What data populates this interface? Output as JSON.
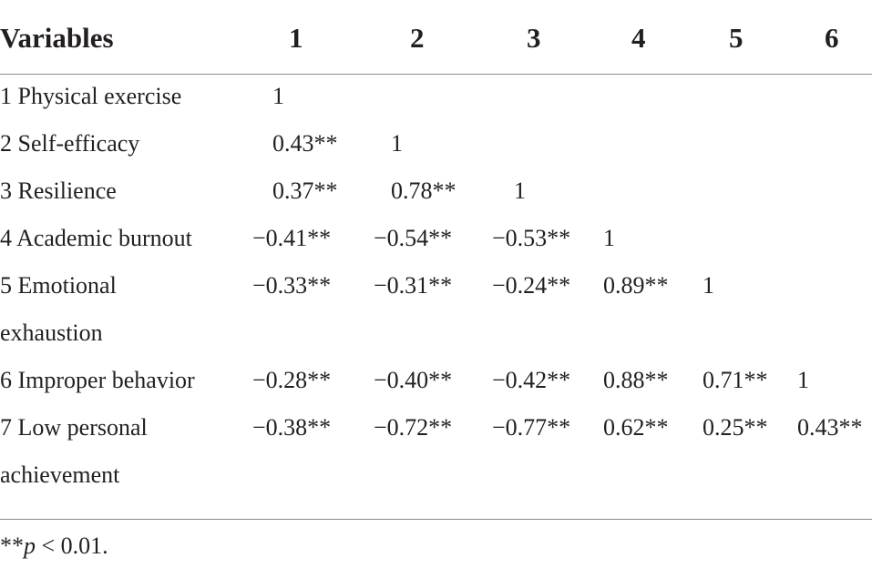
{
  "table": {
    "headers": [
      "Variables",
      "1",
      "2",
      "3",
      "4",
      "5",
      "6"
    ],
    "rows": [
      {
        "variable": "1 Physical exercise",
        "values": [
          "1",
          "",
          "",
          "",
          "",
          ""
        ]
      },
      {
        "variable": "2 Self-efficacy",
        "values": [
          "0.43**",
          "1",
          "",
          "",
          "",
          ""
        ]
      },
      {
        "variable": "3 Resilience",
        "values": [
          "0.37**",
          "0.78**",
          "1",
          "",
          "",
          ""
        ]
      },
      {
        "variable": "4 Academic burnout",
        "values": [
          "−0.41**",
          "−0.54**",
          "−0.53**",
          "1",
          "",
          ""
        ]
      },
      {
        "variable": "5 Emotional exhaustion",
        "values": [
          "−0.33**",
          "−0.31**",
          "−0.24**",
          "0.89**",
          "1",
          ""
        ]
      },
      {
        "variable": "6 Improper behavior",
        "values": [
          "−0.28**",
          "−0.40**",
          "−0.42**",
          "0.88**",
          "0.71**",
          "1"
        ]
      },
      {
        "variable": "7 Low personal achievement",
        "values": [
          "−0.38**",
          "−0.72**",
          "−0.77**",
          "0.62**",
          "0.25**",
          "0.43**"
        ]
      }
    ]
  },
  "footnote": {
    "stars": "**",
    "p": "p",
    "rest": " < 0.01."
  }
}
